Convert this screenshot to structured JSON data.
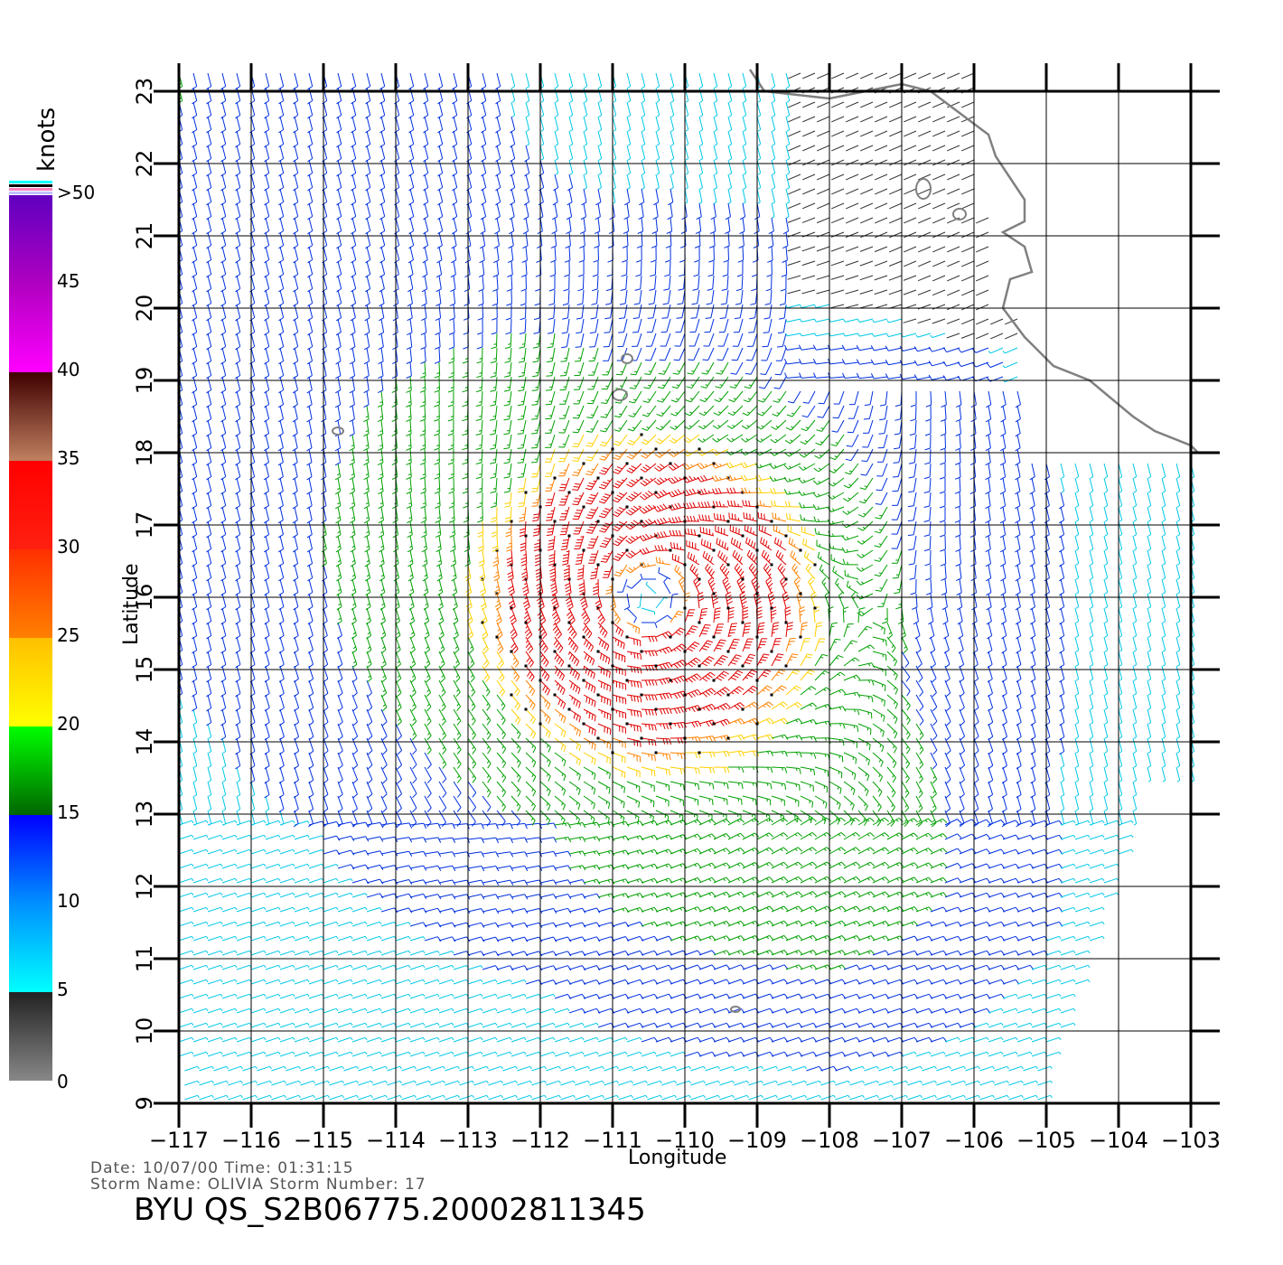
{
  "chart_data": {
    "type": "wind-barb map",
    "xlabel": "Longitude",
    "ylabel": "Latitude",
    "xlim": [
      -117,
      -103
    ],
    "ylim": [
      9,
      23
    ],
    "x_ticks": [
      -117,
      -116,
      -115,
      -114,
      -113,
      -112,
      -111,
      -110,
      -109,
      -108,
      -107,
      -106,
      -105,
      -104,
      -103
    ],
    "x_tick_labels": [
      "−117",
      "−116",
      "−115",
      "−114",
      "−113",
      "−112",
      "−111",
      "−110",
      "−109",
      "−108",
      "−107",
      "−106",
      "−105",
      "−104",
      "−103"
    ],
    "y_ticks": [
      9,
      10,
      11,
      12,
      13,
      14,
      15,
      16,
      17,
      18,
      19,
      20,
      21,
      22,
      23
    ],
    "y_tick_labels": [
      "9",
      "10",
      "11",
      "12",
      "13",
      "14",
      "15",
      "16",
      "17",
      "18",
      "19",
      "20",
      "21",
      "22",
      "23"
    ],
    "grid": true,
    "storm_center": {
      "lon": -110.5,
      "lat": 16.0
    },
    "swath_lon_range": [
      -117.0,
      -103.0
    ],
    "colorbar": {
      "title": "knots",
      "labels": [
        "0",
        "5",
        "10",
        "15",
        "20",
        "25",
        "30",
        "35",
        "40",
        "45",
        ">50"
      ],
      "stops": [
        {
          "value": 0,
          "color": "#888888"
        },
        {
          "value": 5,
          "color": "#222222"
        },
        {
          "value": 5,
          "color": "#00ffff"
        },
        {
          "value": 10,
          "color": "#0090ff"
        },
        {
          "value": 15,
          "color": "#0000ff"
        },
        {
          "value": 15,
          "color": "#006600"
        },
        {
          "value": 20,
          "color": "#00ff00"
        },
        {
          "value": 20,
          "color": "#ffff00"
        },
        {
          "value": 25,
          "color": "#ffc000"
        },
        {
          "value": 25,
          "color": "#ff8000"
        },
        {
          "value": 30,
          "color": "#ff3000"
        },
        {
          "value": 30,
          "color": "#ff2010"
        },
        {
          "value": 35,
          "color": "#ff0000"
        },
        {
          "value": 35,
          "color": "#c08060"
        },
        {
          "value": 40,
          "color": "#400000"
        },
        {
          "value": 40,
          "color": "#ff00ff"
        },
        {
          "value": 45,
          "color": "#b000c0"
        },
        {
          "value": 50,
          "color": "#6000c0"
        }
      ]
    },
    "wind_speed_colors": {
      "calm": "#333333",
      "light": "#00c8e8",
      "moderate": "#0030e0",
      "fresh": "#00a000",
      "strong": "#ffd000",
      "gale": "#ff8000",
      "storm": "#e00000"
    },
    "land_color": "#808080"
  },
  "info": {
    "date_time": "Date: 10/07/00   Time: 01:31:15",
    "storm": "Storm Name: OLIVIA   Storm Number: 17",
    "file_id": "BYU QS_S2B06775.20002811345"
  }
}
